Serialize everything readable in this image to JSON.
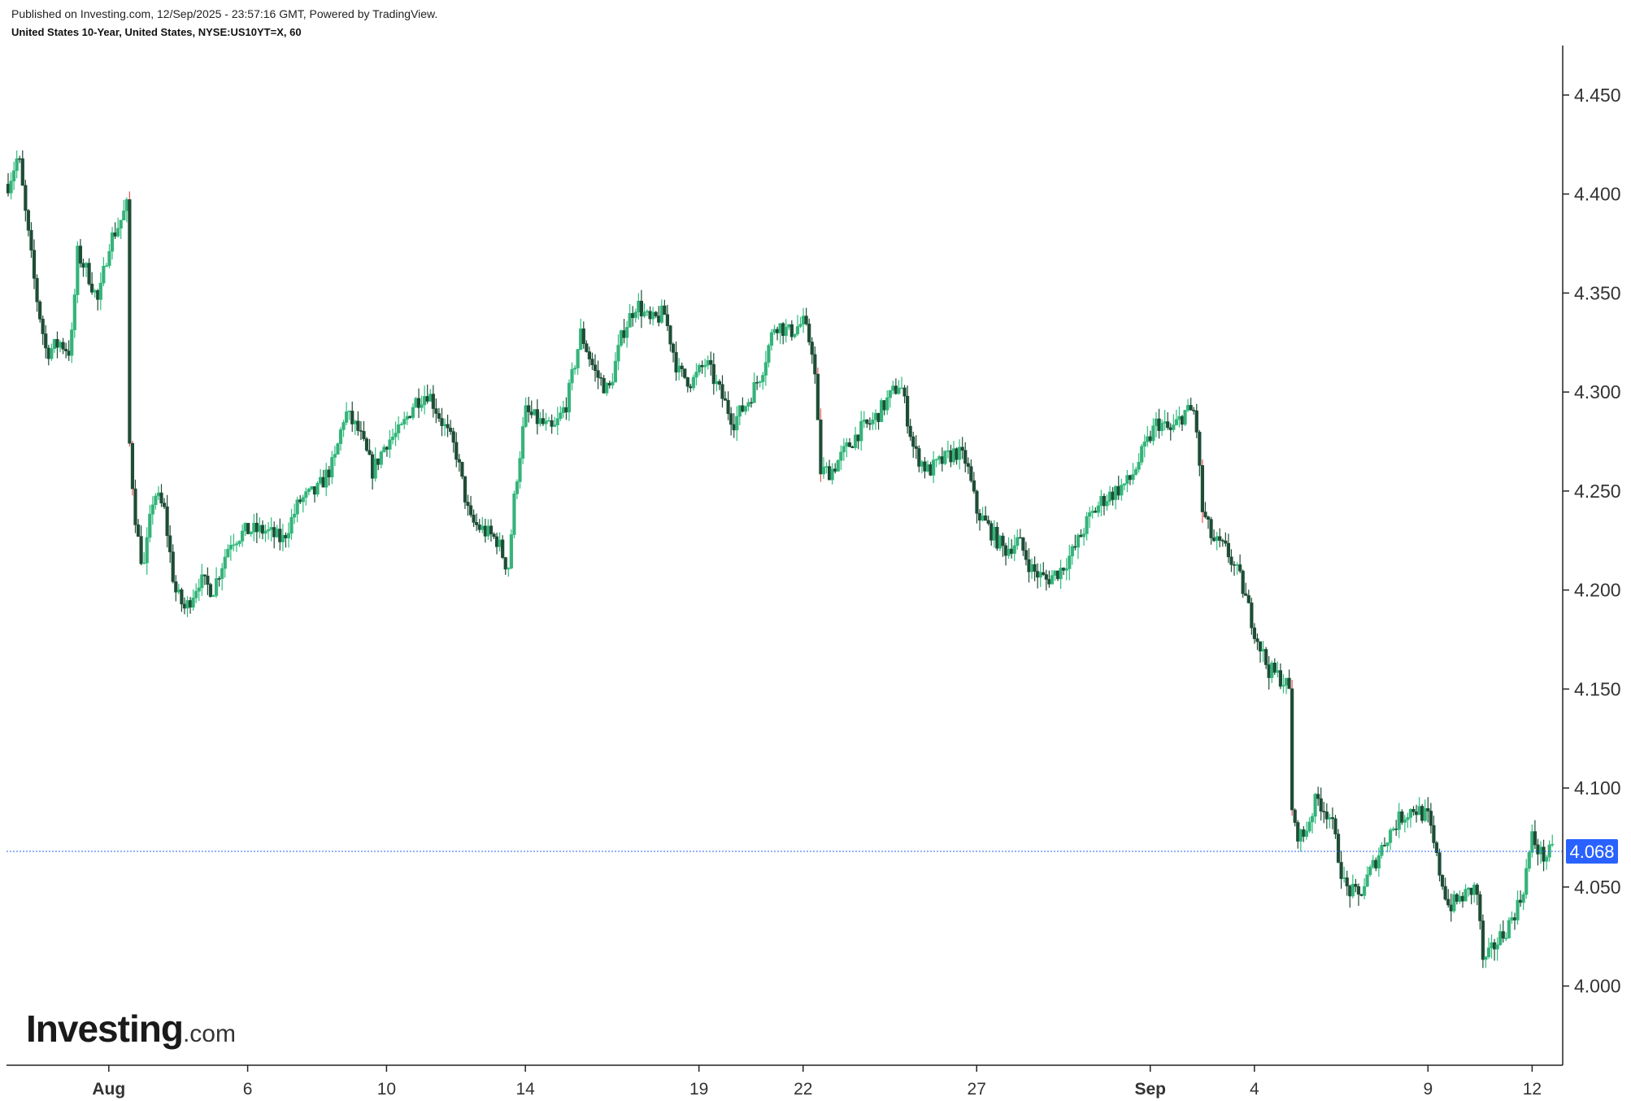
{
  "header": {
    "published": "Published on Investing.com, 12/Sep/2025 - 23:57:16 GMT, Powered by TradingView.",
    "instrument": "United States 10-Year, United States, NYSE:US10YT=X, 60"
  },
  "logo": {
    "brand": "Investing",
    "tld": ".com"
  },
  "colors": {
    "up": "#2dbd7c",
    "down": "#ef5350",
    "body_dark": "#1e4d36",
    "last_price": "#2962ff"
  },
  "chart_data": {
    "type": "candlestick",
    "ylim": [
      3.96,
      4.475
    ],
    "yticks": [
      "4.450",
      "4.400",
      "4.350",
      "4.300",
      "4.250",
      "4.200",
      "4.150",
      "4.100",
      "4.050",
      "4.000"
    ],
    "xticks": [
      {
        "label": "Aug",
        "bold": true,
        "day": 2
      },
      {
        "label": "6",
        "bold": false,
        "day": 6
      },
      {
        "label": "10",
        "bold": false,
        "day": 10
      },
      {
        "label": "14",
        "bold": false,
        "day": 14
      },
      {
        "label": "19",
        "bold": false,
        "day": 19
      },
      {
        "label": "22",
        "bold": false,
        "day": 22
      },
      {
        "label": "27",
        "bold": false,
        "day": 27
      },
      {
        "label": "Sep",
        "bold": true,
        "day": 32
      },
      {
        "label": "4",
        "bold": false,
        "day": 35
      },
      {
        "label": "9",
        "bold": false,
        "day": 40
      },
      {
        "label": "12",
        "bold": false,
        "day": 43
      }
    ],
    "last_price": "4.068",
    "last_value": 4.068,
    "day_range": [
      -0.9,
      43.6
    ],
    "anchors": [
      [
        -0.9,
        4.405
      ],
      [
        -0.6,
        4.42
      ],
      [
        -0.4,
        4.39
      ],
      [
        -0.1,
        4.35
      ],
      [
        0.2,
        4.32
      ],
      [
        0.6,
        4.325
      ],
      [
        0.9,
        4.32
      ],
      [
        1.1,
        4.37
      ],
      [
        1.4,
        4.36
      ],
      [
        1.7,
        4.345
      ],
      [
        2.0,
        4.375
      ],
      [
        2.3,
        4.385
      ],
      [
        2.55,
        4.395
      ],
      [
        2.6,
        4.27
      ],
      [
        2.8,
        4.23
      ],
      [
        3.0,
        4.21
      ],
      [
        3.3,
        4.25
      ],
      [
        3.6,
        4.24
      ],
      [
        3.9,
        4.2
      ],
      [
        4.2,
        4.19
      ],
      [
        4.6,
        4.205
      ],
      [
        5.0,
        4.2
      ],
      [
        5.5,
        4.225
      ],
      [
        6.0,
        4.23
      ],
      [
        6.5,
        4.23
      ],
      [
        7.0,
        4.225
      ],
      [
        7.5,
        4.245
      ],
      [
        8.0,
        4.25
      ],
      [
        8.5,
        4.265
      ],
      [
        8.8,
        4.29
      ],
      [
        9.2,
        4.28
      ],
      [
        9.6,
        4.26
      ],
      [
        10.0,
        4.275
      ],
      [
        10.4,
        4.28
      ],
      [
        10.8,
        4.295
      ],
      [
        11.2,
        4.3
      ],
      [
        11.6,
        4.285
      ],
      [
        12.0,
        4.27
      ],
      [
        12.4,
        4.235
      ],
      [
        12.8,
        4.23
      ],
      [
        13.2,
        4.225
      ],
      [
        13.5,
        4.21
      ],
      [
        13.7,
        4.25
      ],
      [
        14.0,
        4.29
      ],
      [
        14.4,
        4.285
      ],
      [
        14.8,
        4.28
      ],
      [
        15.2,
        4.295
      ],
      [
        15.6,
        4.33
      ],
      [
        16.0,
        4.31
      ],
      [
        16.4,
        4.3
      ],
      [
        16.8,
        4.33
      ],
      [
        17.2,
        4.345
      ],
      [
        17.6,
        4.335
      ],
      [
        18.0,
        4.34
      ],
      [
        18.4,
        4.31
      ],
      [
        18.8,
        4.305
      ],
      [
        19.2,
        4.315
      ],
      [
        19.6,
        4.3
      ],
      [
        20.0,
        4.285
      ],
      [
        20.4,
        4.295
      ],
      [
        20.8,
        4.31
      ],
      [
        21.2,
        4.335
      ],
      [
        21.6,
        4.33
      ],
      [
        22.0,
        4.335
      ],
      [
        22.3,
        4.32
      ],
      [
        22.5,
        4.26
      ],
      [
        22.8,
        4.26
      ],
      [
        23.2,
        4.27
      ],
      [
        23.6,
        4.28
      ],
      [
        24.0,
        4.285
      ],
      [
        24.4,
        4.295
      ],
      [
        24.8,
        4.305
      ],
      [
        25.2,
        4.27
      ],
      [
        25.6,
        4.26
      ],
      [
        26.0,
        4.265
      ],
      [
        26.4,
        4.27
      ],
      [
        26.7,
        4.265
      ],
      [
        27.0,
        4.24
      ],
      [
        27.4,
        4.23
      ],
      [
        27.8,
        4.22
      ],
      [
        28.2,
        4.225
      ],
      [
        28.6,
        4.21
      ],
      [
        29.0,
        4.205
      ],
      [
        29.4,
        4.21
      ],
      [
        29.8,
        4.22
      ],
      [
        30.2,
        4.235
      ],
      [
        30.6,
        4.245
      ],
      [
        31.0,
        4.25
      ],
      [
        31.4,
        4.255
      ],
      [
        31.8,
        4.27
      ],
      [
        32.2,
        4.285
      ],
      [
        32.6,
        4.28
      ],
      [
        33.0,
        4.29
      ],
      [
        33.3,
        4.29
      ],
      [
        33.5,
        4.24
      ],
      [
        33.8,
        4.225
      ],
      [
        34.2,
        4.22
      ],
      [
        34.6,
        4.205
      ],
      [
        35.0,
        4.18
      ],
      [
        35.4,
        4.16
      ],
      [
        35.8,
        4.155
      ],
      [
        36.0,
        4.15
      ],
      [
        36.1,
        4.08
      ],
      [
        36.4,
        4.075
      ],
      [
        36.8,
        4.095
      ],
      [
        37.2,
        4.085
      ],
      [
        37.6,
        4.05
      ],
      [
        38.0,
        4.045
      ],
      [
        38.4,
        4.06
      ],
      [
        38.8,
        4.075
      ],
      [
        39.2,
        4.085
      ],
      [
        39.6,
        4.09
      ],
      [
        40.0,
        4.085
      ],
      [
        40.3,
        4.06
      ],
      [
        40.6,
        4.04
      ],
      [
        41.0,
        4.045
      ],
      [
        41.4,
        4.05
      ],
      [
        41.6,
        4.01
      ],
      [
        41.9,
        4.02
      ],
      [
        42.3,
        4.03
      ],
      [
        42.7,
        4.045
      ],
      [
        43.0,
        4.075
      ],
      [
        43.3,
        4.065
      ],
      [
        43.6,
        4.068
      ]
    ]
  }
}
